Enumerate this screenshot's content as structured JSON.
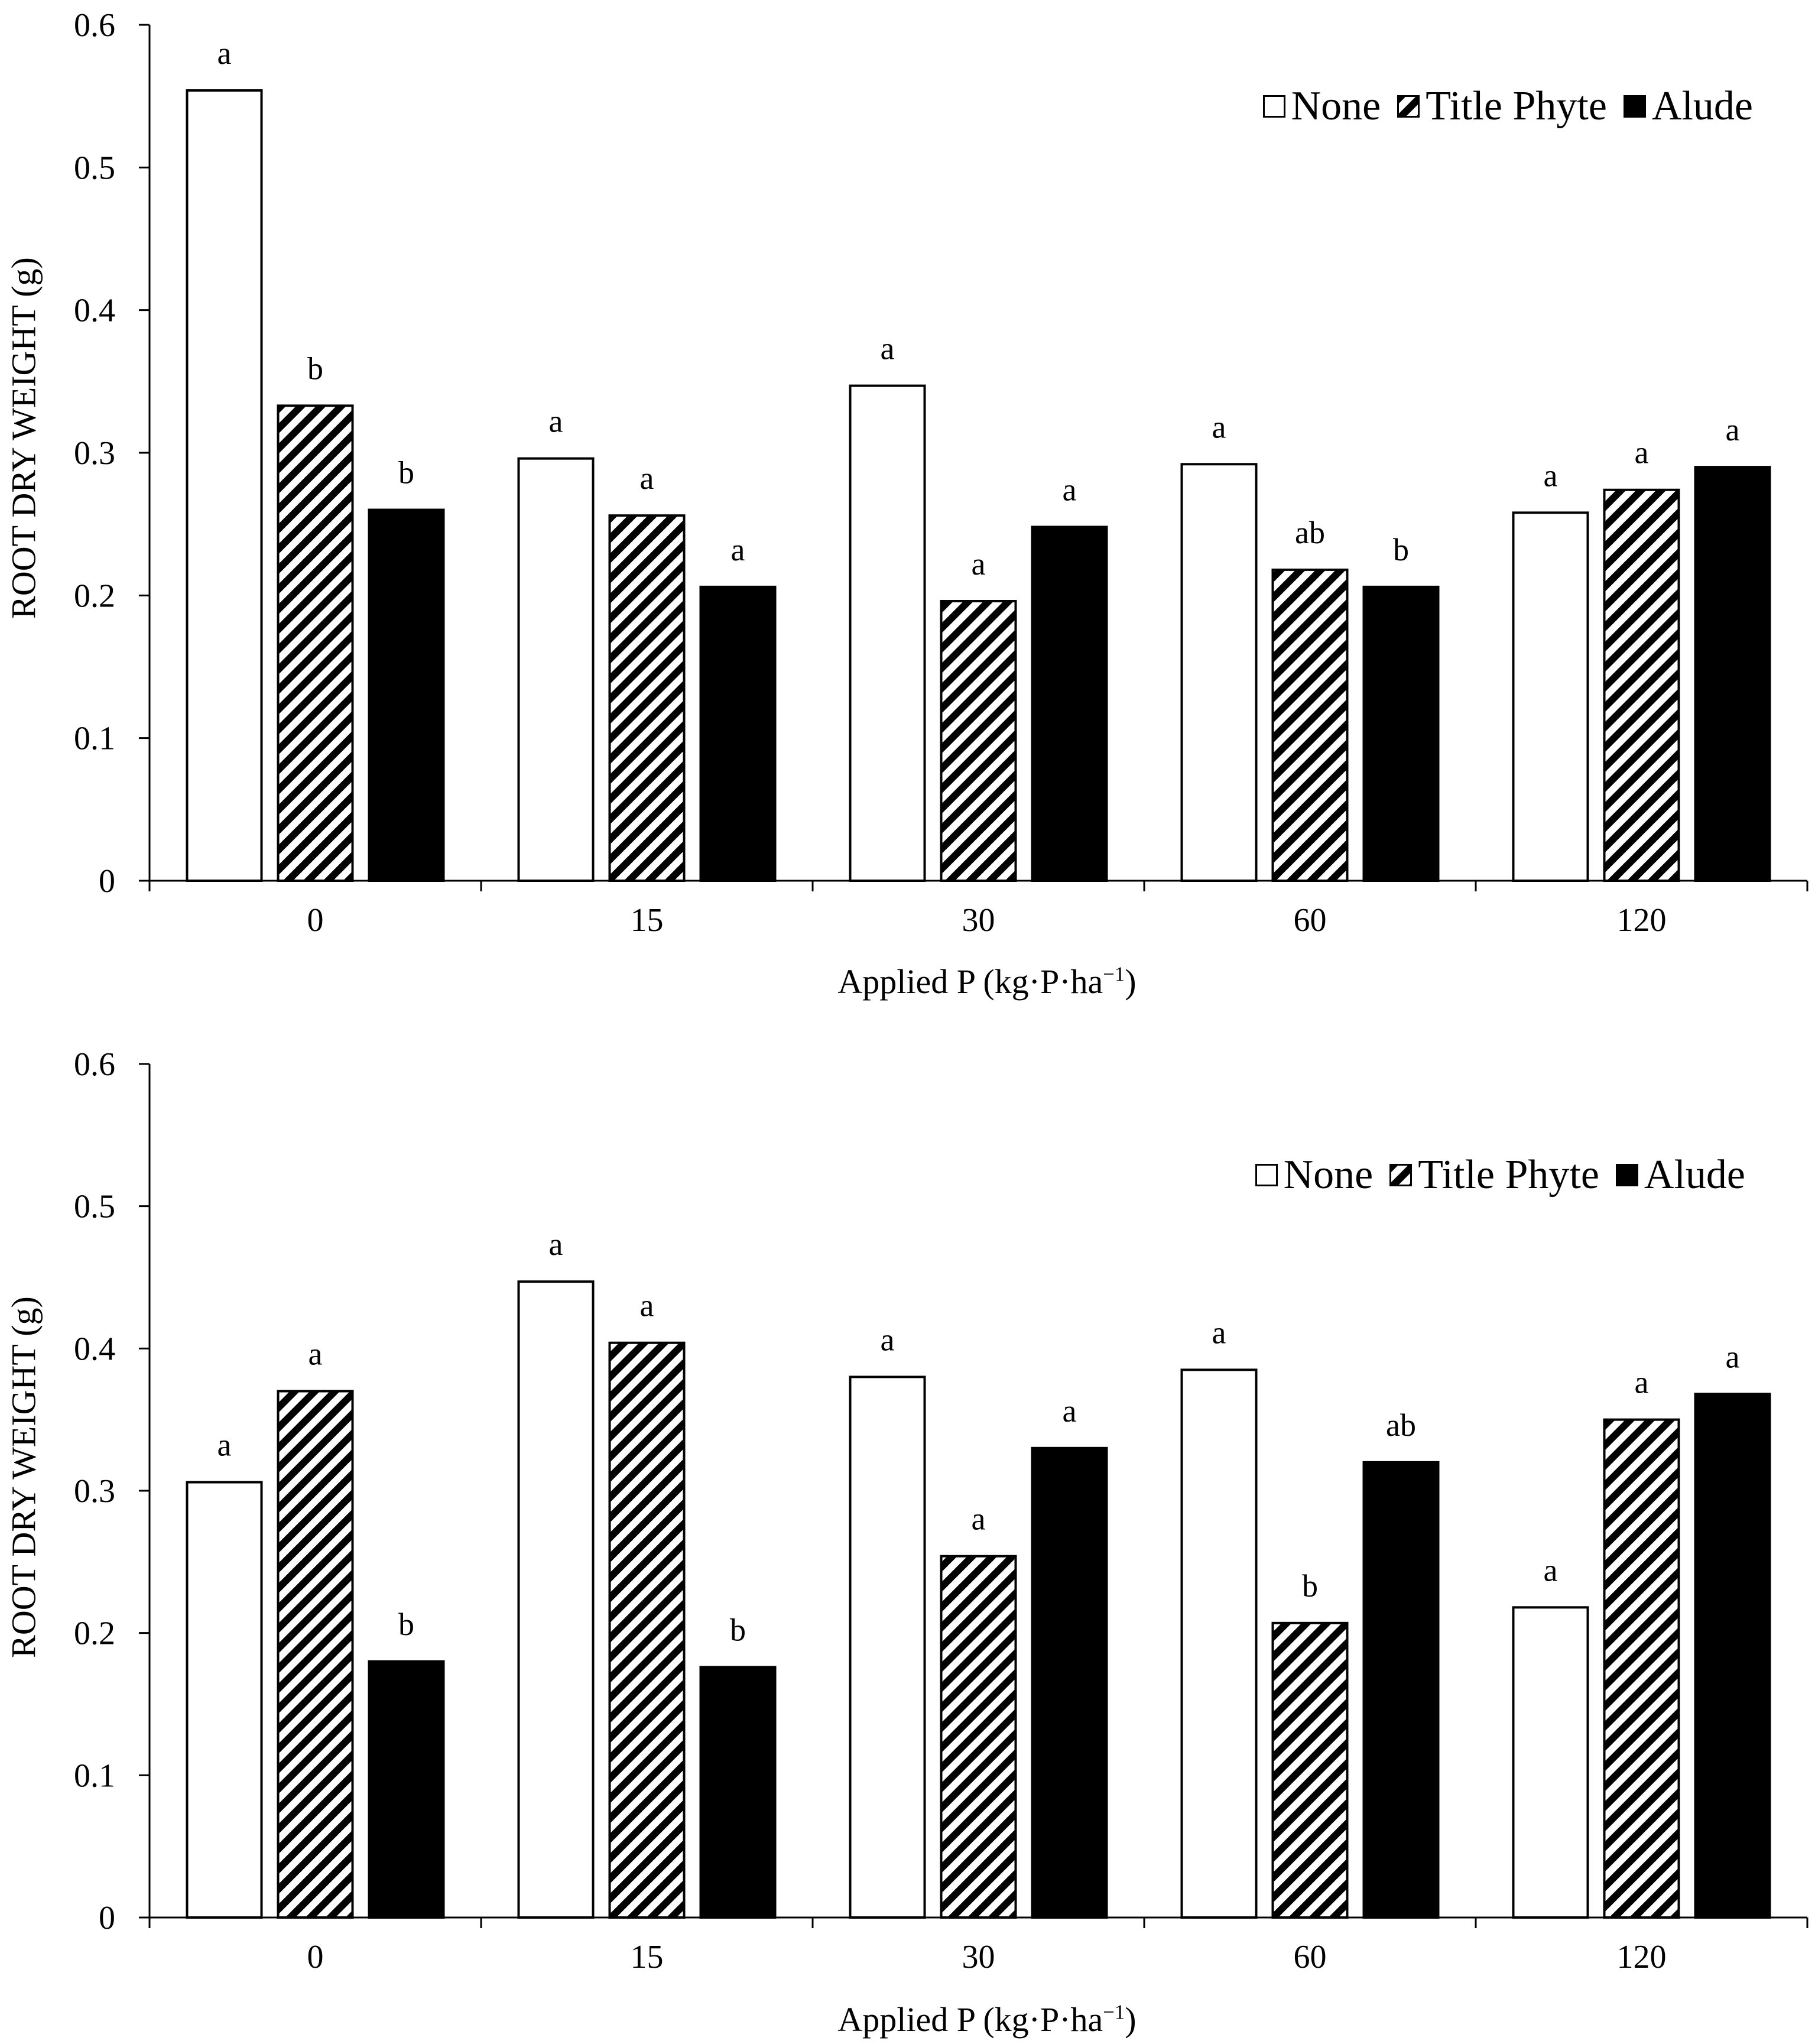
{
  "chart_data": [
    {
      "type": "bar",
      "categories": [
        "0",
        "15",
        "30",
        "60",
        "120"
      ],
      "series": [
        {
          "name": "None",
          "values": [
            0.554,
            0.296,
            0.347,
            0.292,
            0.258
          ],
          "letters": [
            "a",
            "a",
            "a",
            "a",
            "a"
          ]
        },
        {
          "name": "Title Phyte",
          "values": [
            0.333,
            0.256,
            0.196,
            0.218,
            0.274
          ],
          "letters": [
            "b",
            "a",
            "a",
            "ab",
            "a"
          ]
        },
        {
          "name": "Alude",
          "values": [
            0.26,
            0.206,
            0.248,
            0.206,
            0.29
          ],
          "letters": [
            "b",
            "a",
            "a",
            "b",
            "a"
          ]
        }
      ],
      "ylabel": "ROOT DRY WEIGHT (g)",
      "xlabel_main": "Applied P (kg·P·ha",
      "xlabel_sup": "−1",
      "xlabel_end": ")",
      "ylim": [
        0,
        0.6
      ],
      "yticks": [
        "0",
        "0.1",
        "0.2",
        "0.3",
        "0.4",
        "0.5",
        "0.6"
      ],
      "legend_position": "top-right",
      "grid": false
    },
    {
      "type": "bar",
      "categories": [
        "0",
        "15",
        "30",
        "60",
        "120"
      ],
      "series": [
        {
          "name": "None",
          "values": [
            0.306,
            0.447,
            0.38,
            0.385,
            0.218
          ],
          "letters": [
            "a",
            "a",
            "a",
            "a",
            "a"
          ]
        },
        {
          "name": "Title Phyte",
          "values": [
            0.37,
            0.404,
            0.254,
            0.207,
            0.35
          ],
          "letters": [
            "a",
            "a",
            "a",
            "b",
            "a"
          ]
        },
        {
          "name": "Alude",
          "values": [
            0.18,
            0.176,
            0.33,
            0.32,
            0.368
          ],
          "letters": [
            "b",
            "b",
            "a",
            "ab",
            "a"
          ]
        }
      ],
      "ylabel": "ROOT DRY WEIGHT (g)",
      "xlabel_main": "Applied P (kg·P·ha",
      "xlabel_sup": "−1",
      "xlabel_end": ")",
      "ylim": [
        0,
        0.6
      ],
      "yticks": [
        "0",
        "0.1",
        "0.2",
        "0.3",
        "0.4",
        "0.5",
        "0.6"
      ],
      "legend_position": "top-right",
      "grid": false
    }
  ],
  "colors": {
    "none_fill": "#ffffff",
    "alude_fill": "#000000",
    "stroke": "#000000"
  }
}
